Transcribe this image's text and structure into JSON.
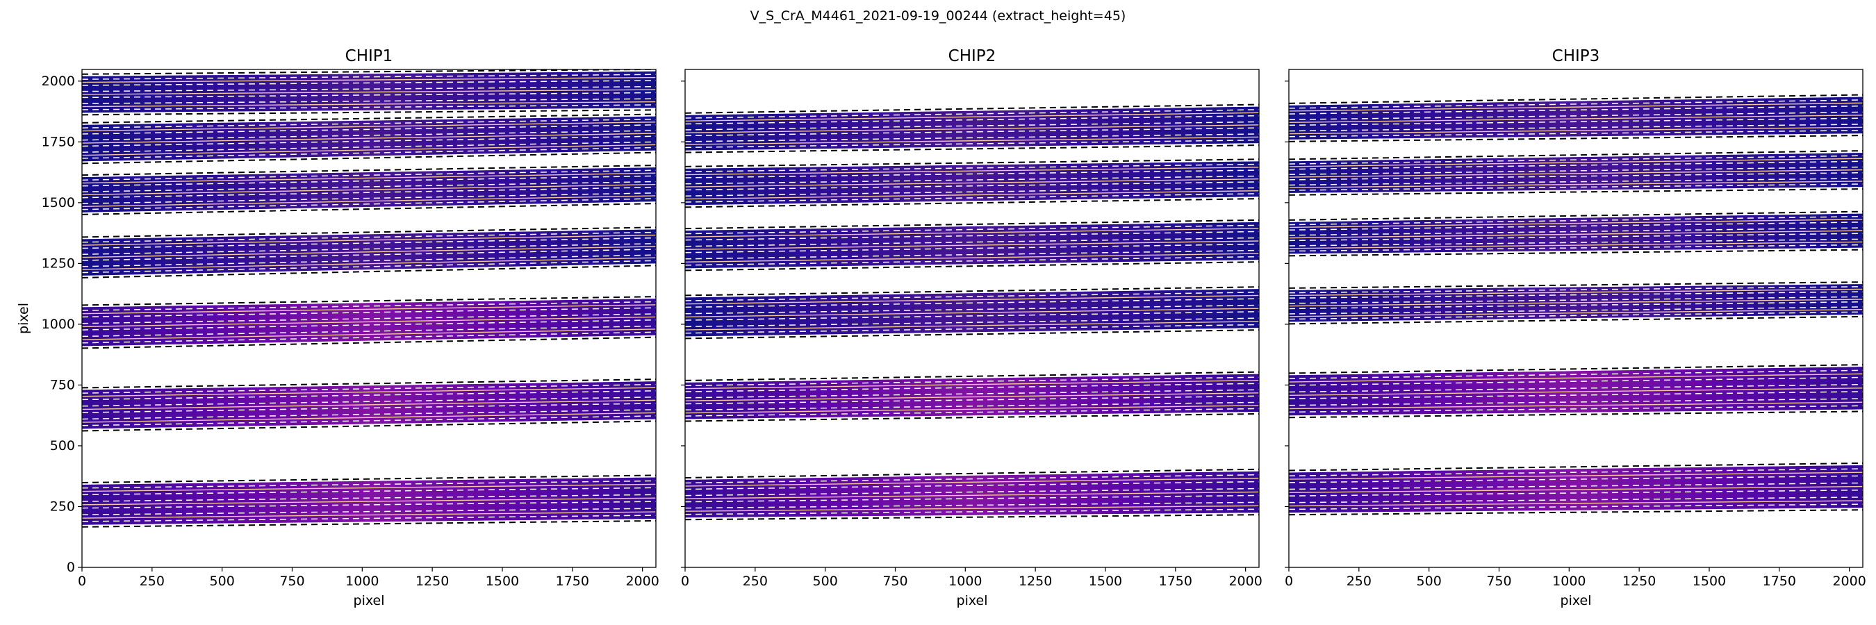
{
  "figure": {
    "title": "V_S_CrA_M4461_2021-09-19_00244  (extract_height=45)"
  },
  "chart_data": {
    "type": "heatmap",
    "description_units": "detector pixels",
    "xlim": [
      0,
      2048
    ],
    "ylim": [
      0,
      2048
    ],
    "x_ticks": [
      0,
      250,
      500,
      750,
      1000,
      1250,
      1500,
      1750,
      2000
    ],
    "y_ticks": [
      0,
      250,
      500,
      750,
      1000,
      1250,
      1500,
      1750,
      2000
    ],
    "xlabel": "pixel",
    "ylabel": "pixel",
    "colormap": [
      "#0d0887",
      "#5c01a6",
      "#9c179e",
      "#cc4778",
      "#ed7953",
      "#fdb42f"
    ],
    "trace_colors": {
      "order_edge": "#000000",
      "extraction_window": "#ffffff",
      "trace_center": "#f6c99a"
    },
    "panels": [
      {
        "title": "CHIP1",
        "orders": [
          {
            "y_bottom_start": 1870,
            "y_bottom_end": 1890,
            "y_top_start": 2020,
            "y_top_end": 2040,
            "partial": true
          },
          {
            "y_bottom_start": 1670,
            "y_bottom_end": 1715,
            "y_top_start": 1820,
            "y_top_end": 1855
          },
          {
            "y_bottom_start": 1460,
            "y_bottom_end": 1505,
            "y_top_start": 1605,
            "y_top_end": 1645
          },
          {
            "y_bottom_start": 1200,
            "y_bottom_end": 1250,
            "y_top_start": 1350,
            "y_top_end": 1390
          },
          {
            "y_bottom_start": 910,
            "y_bottom_end": 955,
            "y_top_start": 1070,
            "y_top_end": 1105
          },
          {
            "y_bottom_start": 570,
            "y_bottom_end": 610,
            "y_top_start": 730,
            "y_top_end": 765
          },
          {
            "y_bottom_start": 175,
            "y_bottom_end": 200,
            "y_top_start": 340,
            "y_top_end": 370
          }
        ]
      },
      {
        "title": "CHIP2",
        "orders": [
          {
            "y_bottom_start": 1715,
            "y_bottom_end": 1745,
            "y_top_start": 1860,
            "y_top_end": 1895
          },
          {
            "y_bottom_start": 1490,
            "y_bottom_end": 1525,
            "y_top_start": 1640,
            "y_top_end": 1670
          },
          {
            "y_bottom_start": 1230,
            "y_bottom_end": 1265,
            "y_top_start": 1385,
            "y_top_end": 1420
          },
          {
            "y_bottom_start": 950,
            "y_bottom_end": 985,
            "y_top_start": 1110,
            "y_top_end": 1145
          },
          {
            "y_bottom_start": 610,
            "y_bottom_end": 640,
            "y_top_start": 760,
            "y_top_end": 795
          },
          {
            "y_bottom_start": 205,
            "y_bottom_end": 225,
            "y_top_start": 360,
            "y_top_end": 395
          }
        ]
      },
      {
        "title": "CHIP3",
        "orders": [
          {
            "y_bottom_start": 1760,
            "y_bottom_end": 1785,
            "y_top_start": 1900,
            "y_top_end": 1935
          },
          {
            "y_bottom_start": 1540,
            "y_bottom_end": 1565,
            "y_top_start": 1670,
            "y_top_end": 1705
          },
          {
            "y_bottom_start": 1290,
            "y_bottom_end": 1315,
            "y_top_start": 1420,
            "y_top_end": 1455
          },
          {
            "y_bottom_start": 1010,
            "y_bottom_end": 1040,
            "y_top_start": 1140,
            "y_top_end": 1165
          },
          {
            "y_bottom_start": 625,
            "y_bottom_end": 650,
            "y_top_start": 790,
            "y_top_end": 825
          },
          {
            "y_bottom_start": 225,
            "y_bottom_end": 245,
            "y_top_start": 390,
            "y_top_end": 420
          }
        ]
      }
    ]
  }
}
